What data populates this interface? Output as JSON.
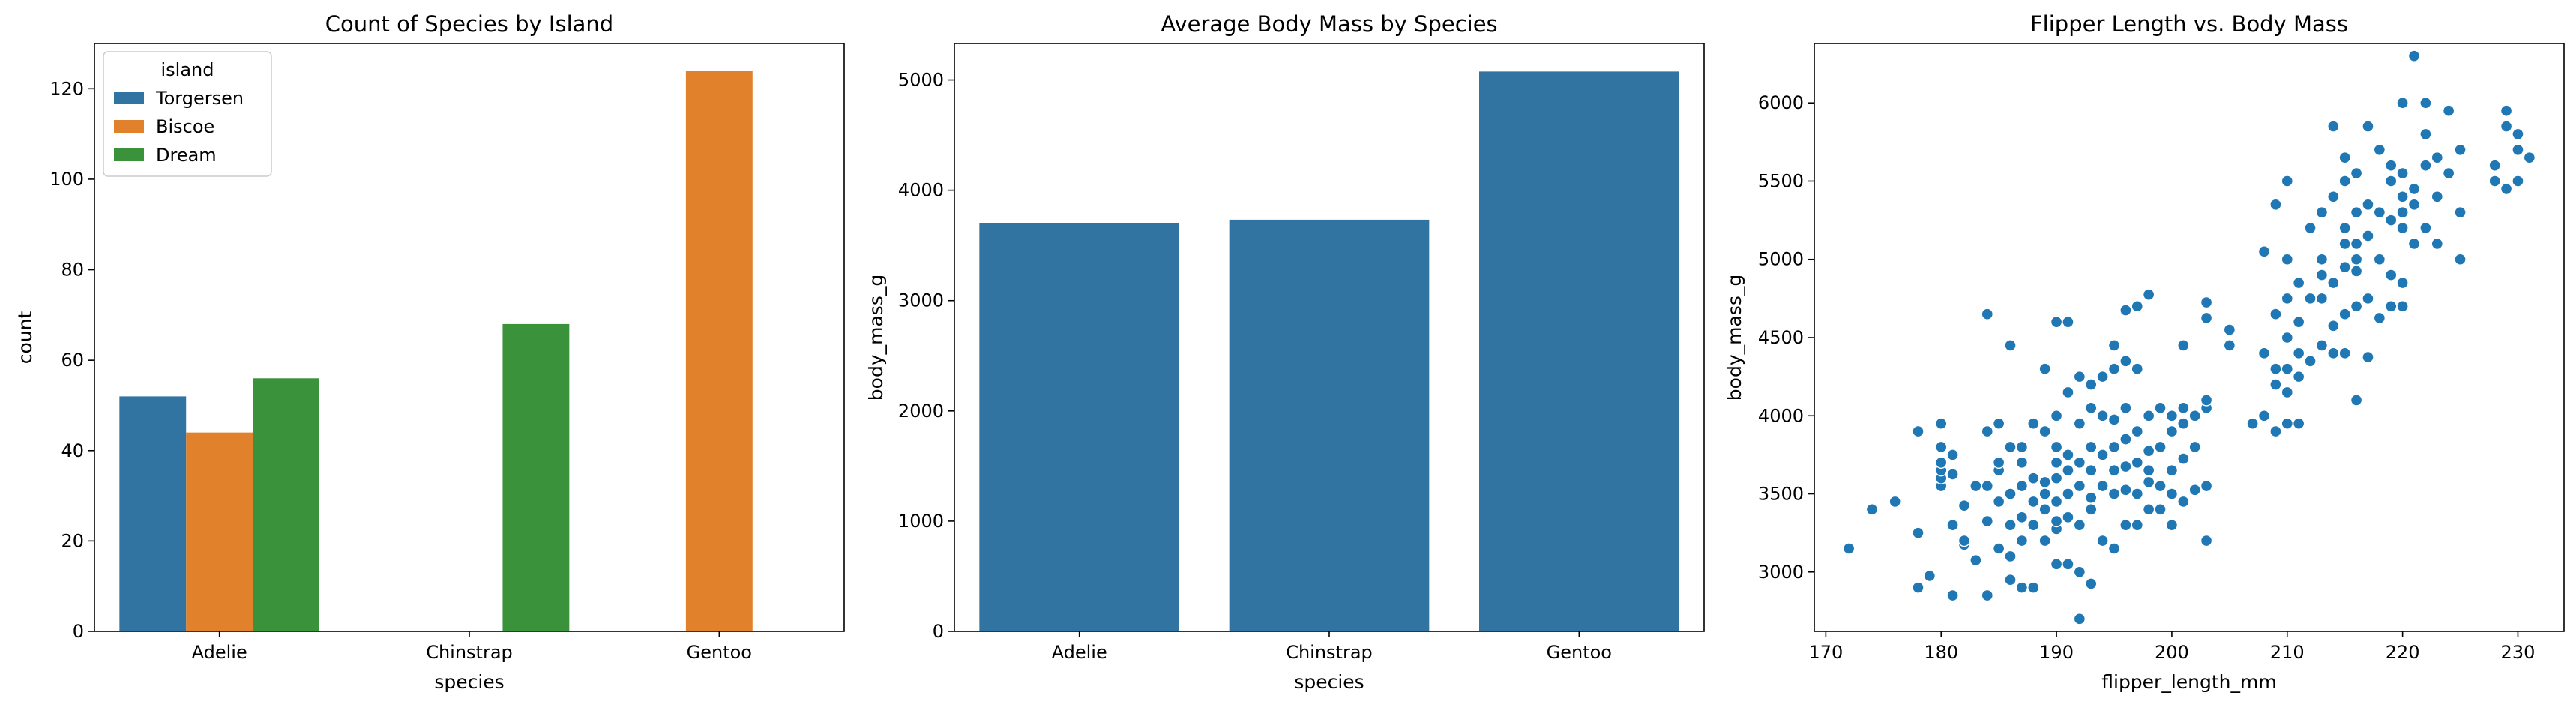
{
  "colors": {
    "torgersen": "#3274a1",
    "biscoe": "#e1812c",
    "dream": "#3a923a",
    "bar2": "#3274a1",
    "scatter": "#1f77b4"
  },
  "chart_data": [
    {
      "type": "bar",
      "title": "Count of Species by Island",
      "xlabel": "species",
      "ylabel": "count",
      "categories": [
        "Adelie",
        "Chinstrap",
        "Gentoo"
      ],
      "series": [
        {
          "name": "Torgersen",
          "values": [
            52,
            0,
            0
          ]
        },
        {
          "name": "Biscoe",
          "values": [
            44,
            0,
            124
          ]
        },
        {
          "name": "Dream",
          "values": [
            56,
            68,
            0
          ]
        }
      ],
      "ylim": [
        0,
        130
      ],
      "yticks": [
        0,
        20,
        40,
        60,
        80,
        100,
        120
      ],
      "legend": {
        "title": "island",
        "placement": "top-left"
      },
      "grid": false
    },
    {
      "type": "bar",
      "title": "Average Body Mass by Species",
      "xlabel": "species",
      "ylabel": "body_mass_g",
      "categories": [
        "Adelie",
        "Chinstrap",
        "Gentoo"
      ],
      "values": [
        3700,
        3733,
        5076
      ],
      "ylim": [
        0,
        5330
      ],
      "yticks": [
        0,
        1000,
        2000,
        3000,
        4000,
        5000
      ],
      "grid": false
    },
    {
      "type": "scatter",
      "title": "Flipper Length vs. Body Mass",
      "xlabel": "flipper_length_mm",
      "ylabel": "body_mass_g",
      "xlim": [
        169,
        234
      ],
      "ylim": [
        2620,
        6380
      ],
      "xticks": [
        170,
        180,
        190,
        200,
        210,
        220,
        230
      ],
      "yticks": [
        3000,
        3500,
        4000,
        4500,
        5000,
        5500,
        6000
      ],
      "grid": false,
      "points": [
        [
          172,
          3150
        ],
        [
          174,
          3400
        ],
        [
          176,
          3450
        ],
        [
          178,
          2900
        ],
        [
          178,
          3250
        ],
        [
          178,
          3900
        ],
        [
          179,
          2975
        ],
        [
          180,
          3550
        ],
        [
          180,
          3600
        ],
        [
          180,
          3650
        ],
        [
          180,
          3700
        ],
        [
          180,
          3800
        ],
        [
          180,
          3950
        ],
        [
          181,
          2850
        ],
        [
          181,
          3300
        ],
        [
          181,
          3625
        ],
        [
          181,
          3750
        ],
        [
          182,
          3175
        ],
        [
          182,
          3425
        ],
        [
          182,
          3200
        ],
        [
          183,
          3075
        ],
        [
          183,
          3550
        ],
        [
          184,
          2850
        ],
        [
          184,
          3325
        ],
        [
          184,
          3550
        ],
        [
          184,
          3900
        ],
        [
          184,
          4650
        ],
        [
          185,
          3150
        ],
        [
          185,
          3450
        ],
        [
          185,
          3650
        ],
        [
          185,
          3700
        ],
        [
          185,
          3950
        ],
        [
          186,
          2950
        ],
        [
          186,
          3100
        ],
        [
          186,
          3300
        ],
        [
          186,
          3500
        ],
        [
          186,
          3800
        ],
        [
          186,
          4450
        ],
        [
          187,
          2900
        ],
        [
          187,
          3200
        ],
        [
          187,
          3350
        ],
        [
          187,
          3550
        ],
        [
          187,
          3700
        ],
        [
          187,
          3800
        ],
        [
          188,
          2900
        ],
        [
          188,
          3300
        ],
        [
          188,
          3450
        ],
        [
          188,
          3600
        ],
        [
          188,
          3950
        ],
        [
          189,
          3200
        ],
        [
          189,
          3400
        ],
        [
          189,
          3500
        ],
        [
          189,
          3575
        ],
        [
          189,
          3900
        ],
        [
          189,
          4300
        ],
        [
          190,
          3050
        ],
        [
          190,
          3275
        ],
        [
          190,
          3325
        ],
        [
          190,
          3450
        ],
        [
          190,
          3600
        ],
        [
          190,
          3700
        ],
        [
          190,
          3800
        ],
        [
          190,
          4000
        ],
        [
          190,
          4600
        ],
        [
          191,
          3050
        ],
        [
          191,
          3350
        ],
        [
          191,
          3500
        ],
        [
          191,
          3650
        ],
        [
          191,
          3750
        ],
        [
          191,
          4150
        ],
        [
          191,
          4600
        ],
        [
          192,
          2700
        ],
        [
          192,
          3000
        ],
        [
          192,
          3300
        ],
        [
          192,
          3550
        ],
        [
          192,
          3700
        ],
        [
          192,
          3950
        ],
        [
          192,
          4250
        ],
        [
          193,
          2925
        ],
        [
          193,
          3400
        ],
        [
          193,
          3475
        ],
        [
          193,
          3650
        ],
        [
          193,
          3800
        ],
        [
          193,
          4050
        ],
        [
          193,
          4200
        ],
        [
          194,
          3200
        ],
        [
          194,
          3550
        ],
        [
          194,
          3750
        ],
        [
          194,
          4000
        ],
        [
          194,
          4250
        ],
        [
          195,
          3150
        ],
        [
          195,
          3500
        ],
        [
          195,
          3650
        ],
        [
          195,
          3800
        ],
        [
          195,
          3975
        ],
        [
          195,
          4300
        ],
        [
          195,
          4450
        ],
        [
          196,
          3300
        ],
        [
          196,
          3525
        ],
        [
          196,
          3675
        ],
        [
          196,
          3850
        ],
        [
          196,
          4050
        ],
        [
          196,
          4350
        ],
        [
          196,
          4675
        ],
        [
          197,
          3300
        ],
        [
          197,
          3500
        ],
        [
          197,
          3700
        ],
        [
          197,
          3900
        ],
        [
          197,
          4300
        ],
        [
          197,
          4700
        ],
        [
          198,
          3400
        ],
        [
          198,
          3575
        ],
        [
          198,
          3650
        ],
        [
          198,
          3775
        ],
        [
          198,
          4000
        ],
        [
          198,
          4775
        ],
        [
          199,
          3400
        ],
        [
          199,
          3550
        ],
        [
          199,
          3800
        ],
        [
          199,
          4050
        ],
        [
          200,
          3300
        ],
        [
          200,
          3500
        ],
        [
          200,
          3650
        ],
        [
          200,
          3900
        ],
        [
          200,
          4000
        ],
        [
          201,
          3450
        ],
        [
          201,
          3725
        ],
        [
          201,
          3950
        ],
        [
          201,
          4050
        ],
        [
          201,
          4450
        ],
        [
          202,
          3525
        ],
        [
          202,
          3800
        ],
        [
          202,
          4000
        ],
        [
          203,
          3200
        ],
        [
          203,
          3550
        ],
        [
          203,
          4050
        ],
        [
          203,
          4100
        ],
        [
          203,
          4625
        ],
        [
          203,
          4725
        ],
        [
          205,
          4450
        ],
        [
          205,
          4550
        ],
        [
          207,
          3950
        ],
        [
          208,
          4000
        ],
        [
          208,
          4400
        ],
        [
          208,
          5050
        ],
        [
          209,
          3900
        ],
        [
          209,
          4200
        ],
        [
          209,
          4300
        ],
        [
          209,
          4650
        ],
        [
          209,
          5350
        ],
        [
          210,
          3950
        ],
        [
          210,
          4150
        ],
        [
          210,
          4300
        ],
        [
          210,
          4500
        ],
        [
          210,
          4750
        ],
        [
          210,
          5000
        ],
        [
          210,
          5500
        ],
        [
          211,
          3950
        ],
        [
          211,
          4250
        ],
        [
          211,
          4400
        ],
        [
          211,
          4600
        ],
        [
          211,
          4850
        ],
        [
          212,
          4350
        ],
        [
          212,
          4750
        ],
        [
          212,
          5200
        ],
        [
          213,
          4450
        ],
        [
          213,
          4750
        ],
        [
          213,
          4900
        ],
        [
          213,
          5000
        ],
        [
          213,
          5300
        ],
        [
          214,
          4400
        ],
        [
          214,
          4575
        ],
        [
          214,
          4850
        ],
        [
          214,
          5400
        ],
        [
          214,
          5850
        ],
        [
          215,
          4400
        ],
        [
          215,
          4650
        ],
        [
          215,
          4950
        ],
        [
          215,
          5100
        ],
        [
          215,
          5200
        ],
        [
          215,
          5500
        ],
        [
          215,
          5650
        ],
        [
          216,
          4100
        ],
        [
          216,
          4700
        ],
        [
          216,
          4925
        ],
        [
          216,
          5000
        ],
        [
          216,
          5100
        ],
        [
          216,
          5300
        ],
        [
          216,
          5550
        ],
        [
          217,
          4375
        ],
        [
          217,
          4750
        ],
        [
          217,
          5150
        ],
        [
          217,
          5350
        ],
        [
          217,
          5850
        ],
        [
          218,
          4625
        ],
        [
          218,
          5000
        ],
        [
          218,
          5300
        ],
        [
          218,
          5700
        ],
        [
          219,
          4700
        ],
        [
          219,
          4900
        ],
        [
          219,
          5250
        ],
        [
          219,
          5500
        ],
        [
          219,
          5600
        ],
        [
          220,
          4700
        ],
        [
          220,
          4850
        ],
        [
          220,
          5200
        ],
        [
          220,
          5300
        ],
        [
          220,
          5400
        ],
        [
          220,
          5550
        ],
        [
          220,
          6000
        ],
        [
          221,
          5100
        ],
        [
          221,
          5350
        ],
        [
          221,
          5450
        ],
        [
          221,
          6300
        ],
        [
          222,
          5200
        ],
        [
          222,
          5600
        ],
        [
          222,
          5800
        ],
        [
          222,
          6000
        ],
        [
          223,
          5100
        ],
        [
          223,
          5400
        ],
        [
          223,
          5650
        ],
        [
          224,
          5550
        ],
        [
          224,
          5950
        ],
        [
          225,
          5000
        ],
        [
          225,
          5300
        ],
        [
          225,
          5700
        ],
        [
          228,
          5500
        ],
        [
          228,
          5600
        ],
        [
          229,
          5450
        ],
        [
          229,
          5850
        ],
        [
          229,
          5950
        ],
        [
          230,
          5500
        ],
        [
          230,
          5700
        ],
        [
          230,
          5800
        ],
        [
          231,
          5650
        ]
      ]
    }
  ]
}
